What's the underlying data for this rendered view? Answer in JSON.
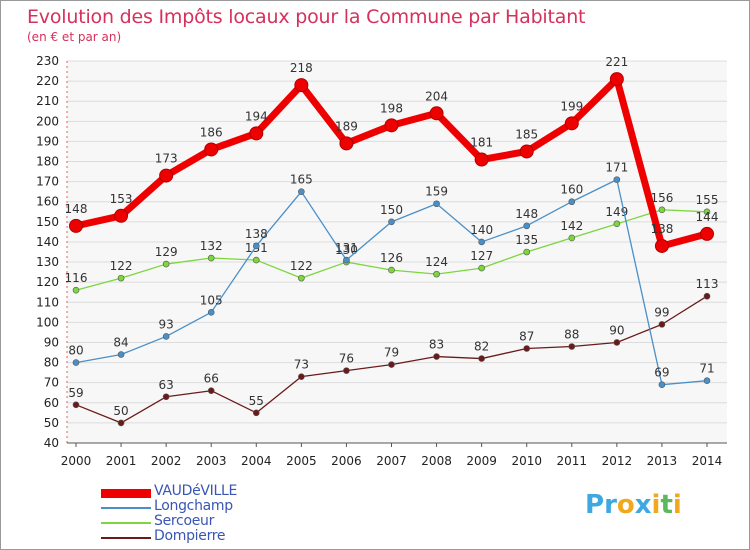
{
  "header": {
    "title": "Evolution des Impôts locaux pour la Commune par Habitant",
    "subtitle": "(en € et par an)"
  },
  "chart_data": {
    "type": "line",
    "title": "Evolution des Impôts locaux pour la Commune par Habitant",
    "subtitle": "(en € et par an)",
    "xlabel": "",
    "ylabel": "",
    "x": [
      "2000",
      "2001",
      "2002",
      "2003",
      "2004",
      "2005",
      "2006",
      "2007",
      "2008",
      "2009",
      "2010",
      "2011",
      "2012",
      "2013",
      "2014"
    ],
    "ylim": [
      40,
      230
    ],
    "yticks": [
      40,
      50,
      60,
      70,
      80,
      90,
      100,
      110,
      120,
      130,
      140,
      150,
      160,
      170,
      180,
      190,
      200,
      210,
      220,
      230
    ],
    "grid": "horizontal",
    "legend_position": "bottom-left",
    "series": [
      {
        "name": "VAUDéVILLE",
        "color": "#ee0000",
        "values": [
          148,
          153,
          173,
          186,
          194,
          218,
          189,
          198,
          204,
          181,
          185,
          199,
          221,
          138,
          144
        ]
      },
      {
        "name": "Longchamp",
        "color": "#4a90c8",
        "values": [
          80,
          84,
          93,
          105,
          138,
          165,
          131,
          150,
          159,
          140,
          148,
          160,
          171,
          69,
          71
        ]
      },
      {
        "name": "Sercoeur",
        "color": "#7cd63c",
        "values": [
          116,
          122,
          129,
          132,
          131,
          122,
          130,
          126,
          124,
          127,
          135,
          142,
          149,
          156,
          155
        ]
      },
      {
        "name": "Dompierre",
        "color": "#6b1a1a",
        "values": [
          59,
          50,
          63,
          66,
          55,
          73,
          76,
          79,
          83,
          82,
          87,
          88,
          90,
          99,
          113
        ]
      }
    ]
  },
  "logo": {
    "letters": [
      "P",
      "r",
      "o",
      "x",
      "i",
      "t",
      "i"
    ],
    "colors": [
      "#3da9e0",
      "#3da9e0",
      "#f2a81d",
      "#3da9e0",
      "#f2a81d",
      "#5cb85c",
      "#f2a81d"
    ]
  }
}
